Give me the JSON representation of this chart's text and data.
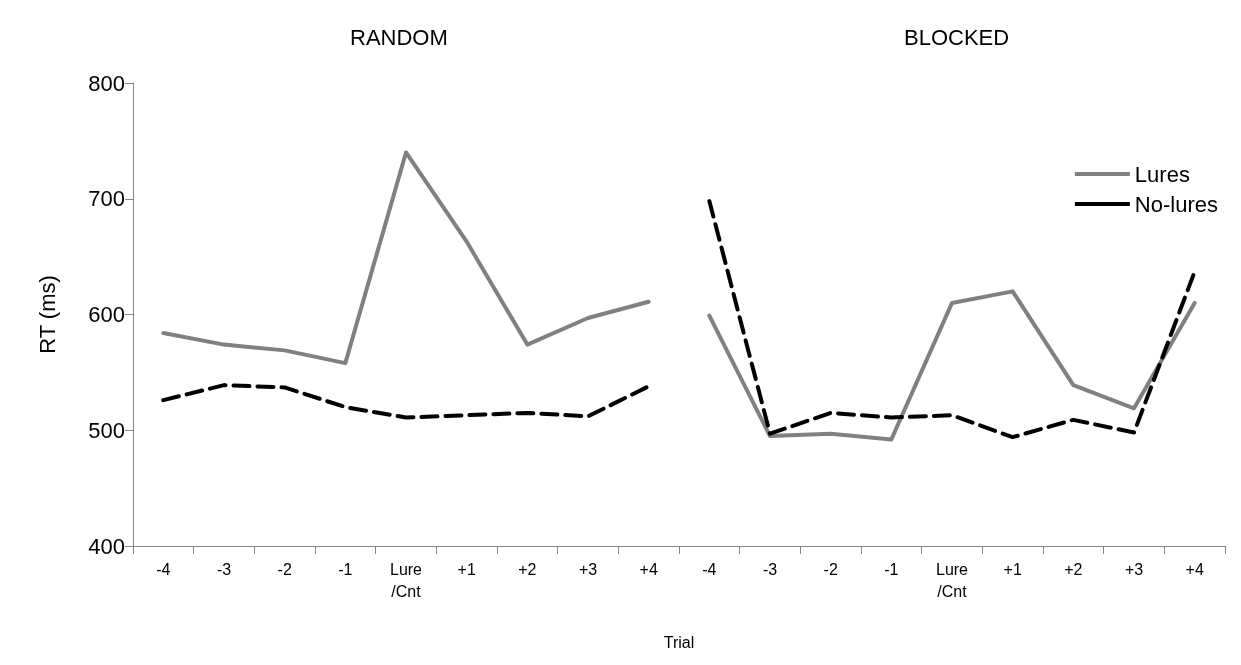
{
  "chart_data": {
    "type": "line",
    "annotations": [
      "RANDOM",
      "BLOCKED"
    ],
    "xlabel": "Trial",
    "ylabel": "RT (ms)",
    "categories": [
      "-4",
      "-3",
      "-2",
      "-1",
      "Lure\n/Cnt",
      "+1",
      "+2",
      "+3",
      "+4",
      "-4",
      "-3",
      "-2",
      "-1",
      "Lure\n/Cnt",
      "+1",
      "+2",
      "+3",
      "+4"
    ],
    "series": [
      {
        "name": "Lures",
        "color": "#808080",
        "line_style": "solid",
        "values": [
          584,
          574,
          569,
          558,
          740,
          663,
          574,
          597,
          611,
          null,
          null,
          null,
          null,
          null,
          null,
          null,
          null,
          null
        ]
      },
      {
        "name": "No-lures",
        "color": "#000000",
        "line_style": "dashed",
        "values": [
          526,
          539,
          537,
          520,
          511,
          513,
          515,
          512,
          538,
          null,
          null,
          null,
          null,
          null,
          null,
          null,
          null,
          null
        ]
      },
      {
        "color": "#808080",
        "line_style": "solid",
        "values": [
          null,
          null,
          null,
          null,
          null,
          null,
          null,
          null,
          null,
          599,
          495,
          497,
          492,
          610,
          620,
          539,
          519,
          610
        ]
      },
      {
        "color": "#000000",
        "line_style": "dashed",
        "values": [
          null,
          null,
          null,
          null,
          null,
          null,
          null,
          null,
          null,
          698,
          497,
          515,
          511,
          513,
          494,
          509,
          498,
          637
        ]
      }
    ],
    "ylim": [
      400,
      800
    ],
    "yticks": [
      400,
      500,
      600,
      700,
      800
    ],
    "grid": false,
    "legend": "top right",
    "marker": "none"
  }
}
